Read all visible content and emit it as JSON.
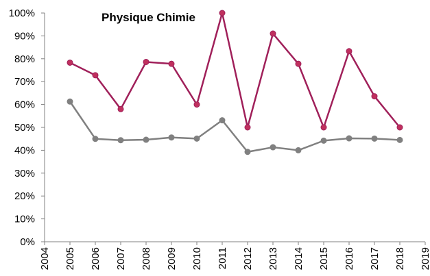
{
  "chart_data": {
    "type": "line",
    "title": "Physique Chimie",
    "xlabel": "",
    "ylabel": "",
    "xlim": [
      2004,
      2019
    ],
    "ylim": [
      0,
      100
    ],
    "x_ticks": [
      2004,
      2005,
      2006,
      2007,
      2008,
      2009,
      2010,
      2011,
      2012,
      2013,
      2014,
      2015,
      2016,
      2017,
      2018,
      2019
    ],
    "y_ticks": [
      0,
      10,
      20,
      30,
      40,
      50,
      60,
      70,
      80,
      90,
      100
    ],
    "x_tick_labels": [
      "2004",
      "2005",
      "2006",
      "2007",
      "2008",
      "2009",
      "2010",
      "2011",
      "2012",
      "2013",
      "2014",
      "2015",
      "2016",
      "2017",
      "2018",
      "2019"
    ],
    "y_tick_labels": [
      "0%",
      "10%",
      "20%",
      "30%",
      "40%",
      "50%",
      "60%",
      "70%",
      "80%",
      "90%",
      "100%"
    ],
    "x": [
      2005,
      2006,
      2007,
      2008,
      2009,
      2010,
      2011,
      2012,
      2013,
      2014,
      2015,
      2016,
      2017,
      2018
    ],
    "series": [
      {
        "color": "#a0205a",
        "marker_color": "#c0305e",
        "values": [
          78.3,
          72.8,
          58,
          78.6,
          77.8,
          60,
          100,
          50,
          91,
          77.8,
          50,
          83.3,
          63.6,
          50
        ]
      },
      {
        "color": "#808080",
        "marker_color": "#808080",
        "values": [
          61.3,
          45,
          44.4,
          44.6,
          45.6,
          45.1,
          53.1,
          39.3,
          41.3,
          40,
          44.2,
          45.2,
          45.1,
          44.5
        ]
      }
    ],
    "grid": false,
    "legend": "none"
  }
}
